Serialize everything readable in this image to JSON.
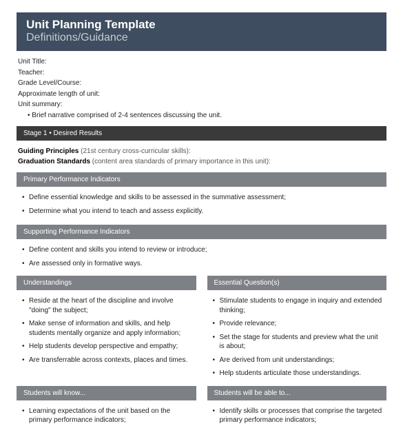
{
  "banner": {
    "line1": "Unit Planning Template",
    "line2": "Definitions/Guidance"
  },
  "meta": {
    "unit_title_label": "Unit Title:",
    "teacher_label": "Teacher:",
    "grade_label": "Grade Level/Course:",
    "length_label": "Approximate length of unit:",
    "summary_label": "Unit summary:",
    "summary_sub": "Brief narrative comprised of 2-4 sentences discussing the unit."
  },
  "stage1": {
    "header": "Stage 1 • Desired Results",
    "guiding_label": "Guiding Principles",
    "guiding_paren": " (21st century cross-curricular skills):",
    "grad_label": "Graduation Standards",
    "grad_paren": " (content area standards of primary importance in this unit):"
  },
  "primary_perf": {
    "header": "Primary Performance Indicators",
    "items": [
      "Define essential knowledge and skills to be assessed in the summative assessment;",
      "Determine what you intend to teach and assess explicitly."
    ]
  },
  "supporting_perf": {
    "header": "Supporting Performance Indicators",
    "items": [
      "Define content and skills you intend to review or introduce;",
      "Are assessed only in formative ways."
    ]
  },
  "understandings": {
    "header": "Understandings",
    "items": [
      "Reside at the heart of the discipline and involve \"doing\" the subject;",
      "Make sense of information and skills, and help students mentally organize and apply information;",
      "Help students develop perspective and empathy;",
      "Are transferrable across contexts, places and times."
    ]
  },
  "essential_q": {
    "header": "Essential Question(s)",
    "items": [
      "Stimulate students to engage in inquiry and extended thinking;",
      "Provide relevance;",
      "Set the stage for students and preview what the unit is about;",
      "Are derived from unit understandings;",
      "Help students articulate those understandings."
    ]
  },
  "know": {
    "header": "Students will know...",
    "items": [
      "Learning expectations of the unit based on the primary performance indicators;"
    ]
  },
  "able": {
    "header": "Students will be able to...",
    "items": [
      "Identify skills or processes that comprise the targeted primary performance indicators;"
    ]
  }
}
